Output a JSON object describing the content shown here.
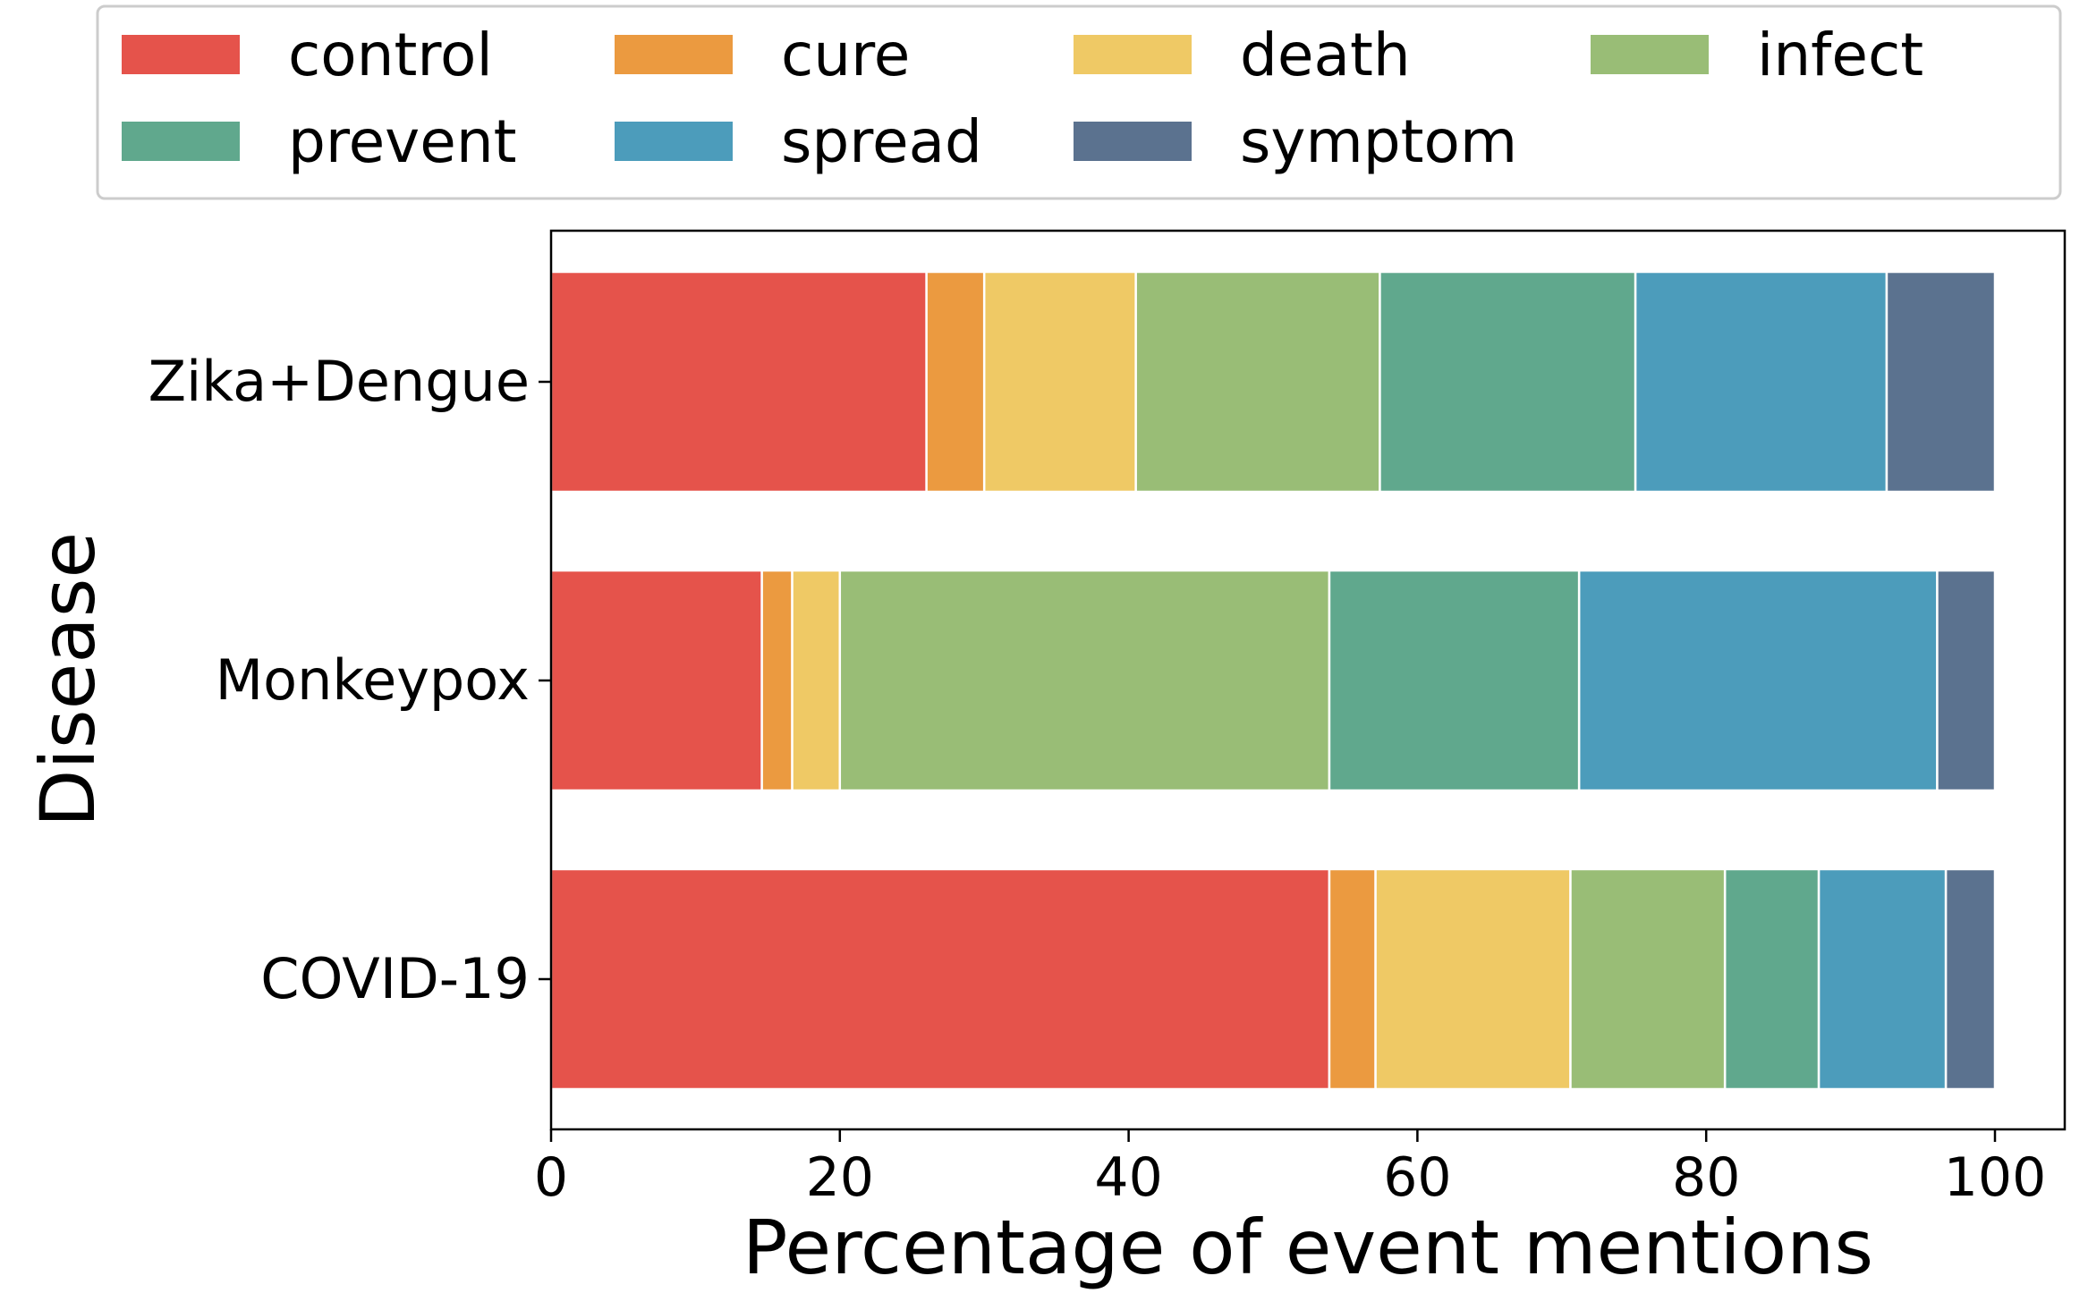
{
  "chart_data": {
    "type": "bar",
    "orientation": "horizontal",
    "stacked": true,
    "categories": [
      "Zika+Dengue",
      "Monkeypox",
      "COVID-19"
    ],
    "series": [
      {
        "name": "control",
        "color": "#e5534b",
        "values": [
          26.0,
          14.6,
          53.9
        ]
      },
      {
        "name": "cure",
        "color": "#eb9a40",
        "values": [
          4.0,
          2.1,
          3.2
        ]
      },
      {
        "name": "death",
        "color": "#efc965",
        "values": [
          10.5,
          3.3,
          13.5
        ]
      },
      {
        "name": "infect",
        "color": "#99bd76",
        "values": [
          16.9,
          33.9,
          10.7
        ]
      },
      {
        "name": "prevent",
        "color": "#60a88d",
        "values": [
          17.7,
          17.3,
          6.5
        ]
      },
      {
        "name": "spread",
        "color": "#4c9cbb",
        "values": [
          17.4,
          24.8,
          8.8
        ]
      },
      {
        "name": "symptom",
        "color": "#5b728f",
        "values": [
          7.5,
          4.0,
          3.4
        ]
      }
    ],
    "xlabel": "Percentage of event mentions",
    "ylabel": "Disease",
    "xlim": [
      0,
      105
    ],
    "xticks": [
      0,
      20,
      40,
      60,
      80,
      100
    ],
    "legend_location": "top",
    "grid": false
  }
}
